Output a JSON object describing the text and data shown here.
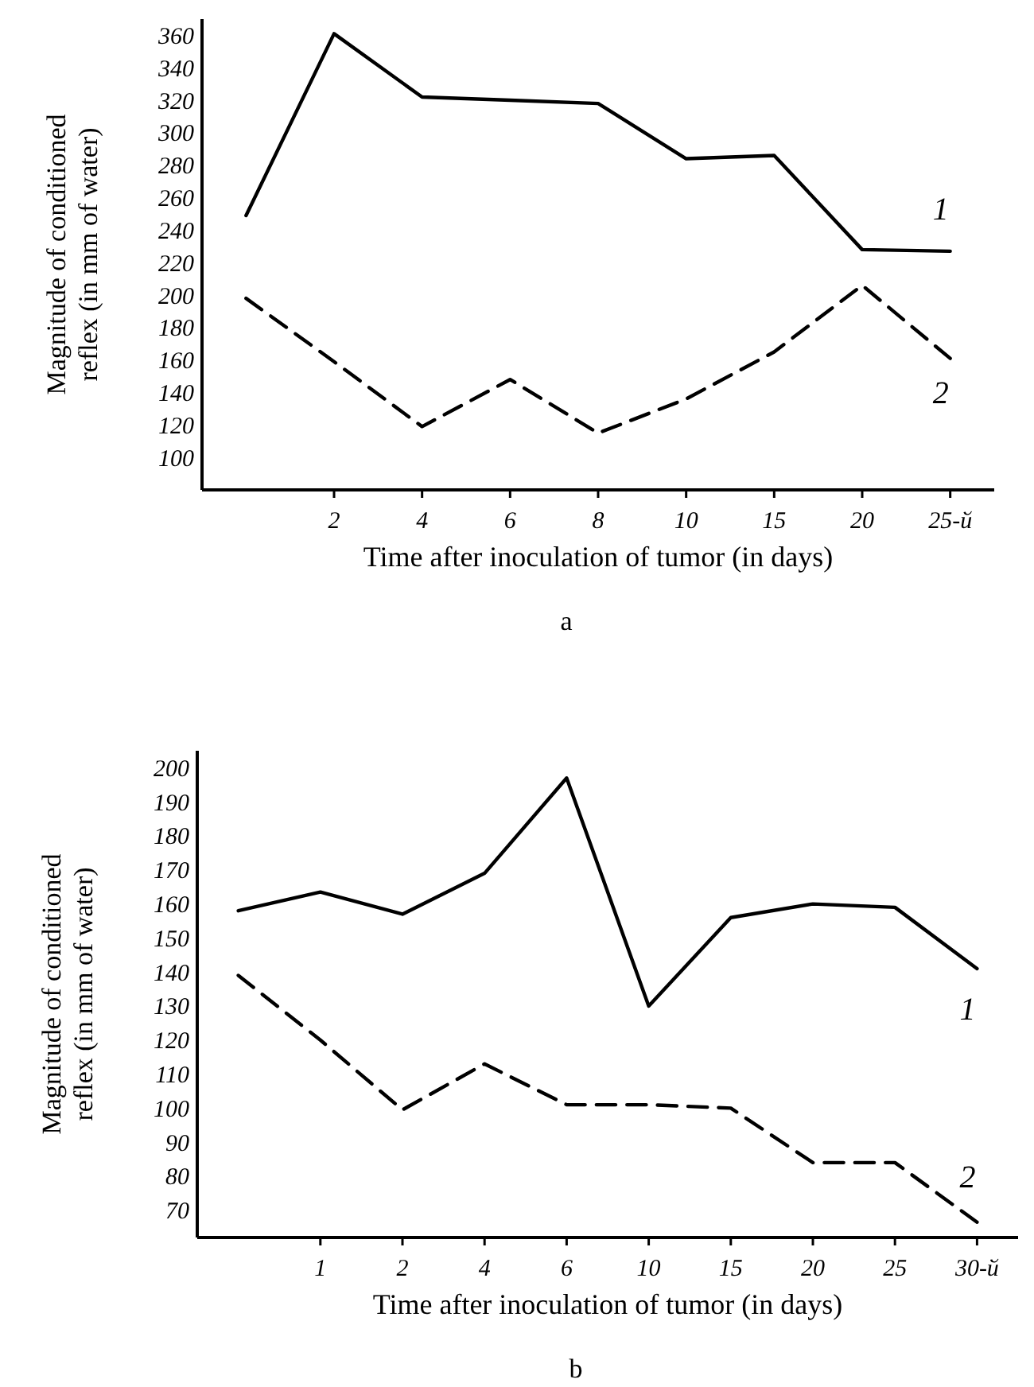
{
  "chart_data": [
    {
      "type": "line",
      "title": "a",
      "xlabel": "Time after inoculation of tumor (in days)",
      "ylabel": "Magnitude of conditioned reflex (in mm of water)",
      "categories": [
        null,
        "2",
        "4",
        "6",
        "8",
        "10",
        "15",
        "20",
        "25-й"
      ],
      "ylim": [
        80,
        370
      ],
      "yticks": [
        100,
        120,
        140,
        160,
        180,
        200,
        220,
        240,
        260,
        280,
        300,
        320,
        340,
        360
      ],
      "grid": false,
      "marker": "none",
      "series": [
        {
          "name": "1",
          "color": "#000000",
          "line_style": "solid",
          "values": [
            249,
            361,
            322,
            320,
            318,
            284,
            286,
            228,
            227
          ]
        },
        {
          "name": "2",
          "color": "#000000",
          "line_style": "dashed",
          "values": [
            198,
            159,
            119,
            148,
            115,
            136,
            165,
            206,
            161
          ]
        }
      ]
    },
    {
      "type": "line",
      "title": "b",
      "xlabel": "Time after inoculation of tumor (in days)",
      "ylabel": "Magnitude of conditioned reflex (in mm of water)",
      "categories": [
        null,
        "1",
        "2",
        "4",
        "6",
        "10",
        "15",
        "20",
        "25",
        "30-й"
      ],
      "ylim": [
        62,
        205
      ],
      "yticks": [
        70,
        80,
        90,
        100,
        110,
        120,
        130,
        140,
        150,
        160,
        170,
        180,
        190,
        200
      ],
      "grid": false,
      "marker": "none",
      "series": [
        {
          "name": "1",
          "color": "#000000",
          "line_style": "solid",
          "values": [
            158,
            163.5,
            157,
            169,
            197,
            130,
            156,
            160,
            159,
            141
          ]
        },
        {
          "name": "2",
          "color": "#000000",
          "line_style": "dashed",
          "values": [
            139,
            120,
            99.5,
            113,
            101,
            101,
            100,
            84,
            84,
            66.5
          ]
        }
      ]
    }
  ]
}
